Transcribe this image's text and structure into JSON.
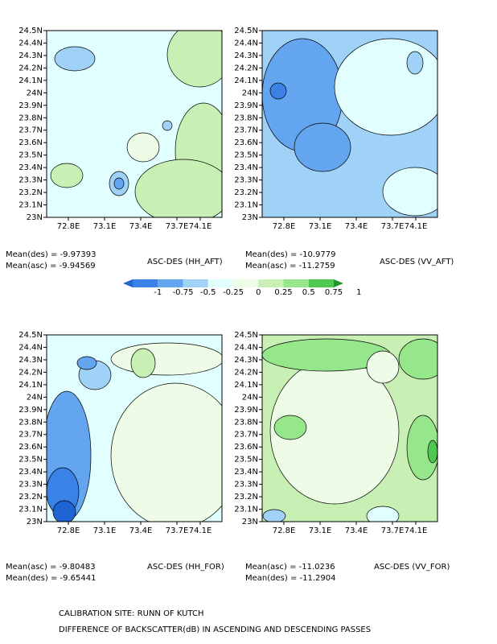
{
  "panels": [
    {
      "title": "ASC-DES (HH_AFT)",
      "stats": [
        "Mean(des) = -9.97393",
        "Mean(asc) = -9.94569"
      ]
    },
    {
      "title": "ASC-DES (VV_AFT)",
      "stats": [
        "Mean(des) = -10.9779",
        "Mean(asc) = -11.2759"
      ]
    },
    {
      "title": "ASC-DES (HH_FOR)",
      "stats": [
        "Mean(asc) = -9.80483",
        "Mean(des) = -9.65441"
      ]
    },
    {
      "title": "ASC-DES (VV_FOR)",
      "stats": [
        "Mean(asc) = -11.0236",
        "Mean(des) = -11.2904"
      ]
    }
  ],
  "yticks": [
    "24.5N",
    "24.4N",
    "24.3N",
    "24.2N",
    "24.1N",
    "24N",
    "23.9N",
    "23.8N",
    "23.7N",
    "23.6N",
    "23.5N",
    "23.4N",
    "23.3N",
    "23.2N",
    "23.1N",
    "23N"
  ],
  "xticks": [
    "72.8E",
    "73.1E",
    "73.4E",
    "73.7E",
    "74.1E"
  ],
  "colorbar": {
    "labels": [
      "-1",
      "-0.75",
      "-0.5",
      "-0.25",
      "0",
      "0.25",
      "0.5",
      "0.75",
      "1"
    ],
    "colors": [
      "#1e64d2",
      "#3a82e6",
      "#64a5f0",
      "#a0d2f8",
      "#e1ffff",
      "#eefbe6",
      "#c8f0b4",
      "#96e68c",
      "#50c850",
      "#1e9632"
    ]
  },
  "footer": [
    "CALIBRATION SITE: RUNN OF KUTCH",
    "DIFFERENCE OF BACKSCATTER(dB) IN ASCENDING AND DESCENDING PASSES"
  ]
}
